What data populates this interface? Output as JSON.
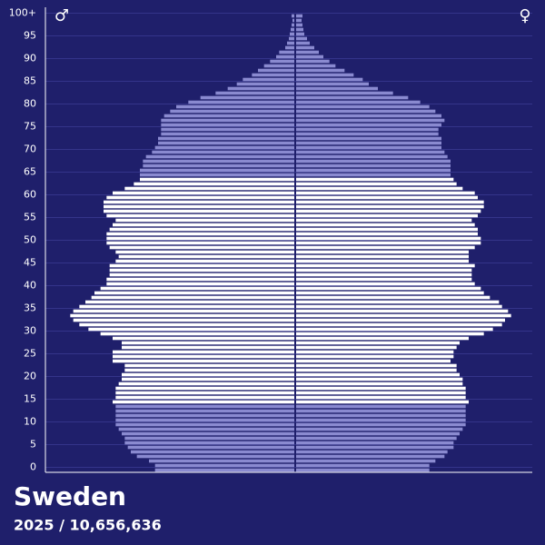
{
  "chart_data": {
    "type": "pyramid",
    "title": "Sweden",
    "subtitle": "2025 / 10,656,636",
    "categories": [
      "0",
      null,
      null,
      null,
      null,
      "5",
      null,
      null,
      null,
      null,
      "10",
      null,
      null,
      null,
      null,
      "15",
      null,
      null,
      null,
      null,
      "20",
      null,
      null,
      null,
      null,
      "25",
      null,
      null,
      null,
      null,
      "30",
      null,
      null,
      null,
      null,
      "35",
      null,
      null,
      null,
      null,
      "40",
      null,
      null,
      null,
      null,
      "45",
      null,
      null,
      null,
      null,
      "50",
      null,
      null,
      null,
      null,
      "55",
      null,
      null,
      null,
      null,
      "60",
      null,
      null,
      null,
      null,
      "65",
      null,
      null,
      null,
      null,
      "70",
      null,
      null,
      null,
      null,
      "75",
      null,
      null,
      null,
      null,
      "80",
      null,
      null,
      null,
      null,
      "85",
      null,
      null,
      null,
      null,
      "90",
      null,
      null,
      null,
      null,
      "95",
      null,
      null,
      null,
      null,
      "100+"
    ],
    "xlim": [
      0,
      82.5
    ],
    "grid": true,
    "bar_colors": [
      "#8a8ad0",
      "#8a8ad0",
      "#8a8ad0",
      "#8a8ad0",
      "#8a8ad0",
      "#8a8ad0",
      "#8a8ad0",
      "#8a8ad0",
      "#8a8ad0",
      "#8a8ad0",
      "#8a8ad0",
      "#8a8ad0",
      "#8a8ad0",
      "#8a8ad0",
      "#8a8ad0",
      "#ffffff",
      "#ffffff",
      "#ffffff",
      "#ffffff",
      "#ffffff",
      "#ffffff",
      "#ffffff",
      "#ffffff",
      "#ffffff",
      "#ffffff",
      "#ffffff",
      "#ffffff",
      "#ffffff",
      "#ffffff",
      "#ffffff",
      "#ffffff",
      "#ffffff",
      "#ffffff",
      "#ffffff",
      "#ffffff",
      "#ffffff",
      "#ffffff",
      "#ffffff",
      "#ffffff",
      "#ffffff",
      "#ffffff",
      "#ffffff",
      "#ffffff",
      "#ffffff",
      "#ffffff",
      "#ffffff",
      "#ffffff",
      "#ffffff",
      "#ffffff",
      "#ffffff",
      "#ffffff",
      "#ffffff",
      "#ffffff",
      "#ffffff",
      "#ffffff",
      "#ffffff",
      "#ffffff",
      "#ffffff",
      "#ffffff",
      "#ffffff",
      "#ffffff",
      "#ffffff",
      "#ffffff",
      "#ffffff",
      "#ffffff",
      "#8a8ad0",
      "#8a8ad0",
      "#8a8ad0",
      "#8a8ad0",
      "#8a8ad0",
      "#8a8ad0",
      "#8a8ad0",
      "#8a8ad0",
      "#8a8ad0",
      "#8a8ad0",
      "#8a8ad0",
      "#8a8ad0",
      "#8a8ad0",
      "#8a8ad0",
      "#8a8ad0",
      "#8a8ad0",
      "#8a8ad0",
      "#8a8ad0",
      "#8a8ad0",
      "#8a8ad0",
      "#8a8ad0",
      "#8a8ad0",
      "#8a8ad0",
      "#8a8ad0",
      "#8a8ad0",
      "#8a8ad0",
      "#8a8ad0",
      "#8a8ad0",
      "#8a8ad0",
      "#8a8ad0",
      "#8a8ad0",
      "#8a8ad0",
      "#8a8ad0",
      "#8a8ad0",
      "#8a8ad0",
      "#8a8ad0"
    ],
    "series": [
      {
        "name": "♂",
        "side": "left",
        "values": [
          46,
          46,
          48,
          52,
          54,
          55,
          56,
          56,
          57,
          58,
          59,
          59,
          59,
          59,
          59,
          60,
          59,
          59,
          59,
          58,
          57,
          57,
          56,
          56,
          60,
          60,
          60,
          57,
          57,
          60,
          64,
          68,
          71,
          73,
          74,
          73,
          71,
          69,
          67,
          66,
          64,
          62,
          62,
          61,
          61,
          61,
          59,
          58,
          59,
          61,
          62,
          62,
          62,
          61,
          60,
          59,
          62,
          63,
          63,
          63,
          62,
          60,
          56,
          53,
          51,
          51,
          51,
          50,
          50,
          49,
          47,
          46,
          45,
          45,
          44,
          44,
          44,
          44,
          43,
          41,
          39,
          35,
          31,
          26,
          22,
          19,
          17,
          14,
          12,
          10,
          8,
          6,
          5,
          3,
          2.4,
          1.8,
          1.5,
          1.2,
          0.9,
          0.6,
          0.9
        ]
      },
      {
        "name": "♀",
        "side": "right",
        "values": [
          44,
          44,
          46,
          49,
          50,
          52,
          52,
          53,
          54,
          55,
          56,
          56,
          56,
          56,
          56,
          57,
          56,
          56,
          56,
          55,
          55,
          54,
          53,
          53,
          51,
          52,
          52,
          53,
          54,
          57,
          62,
          65,
          68,
          69,
          71,
          70,
          68,
          67,
          64,
          62,
          61,
          59,
          58,
          58,
          58,
          59,
          57,
          57,
          57,
          59,
          61,
          61,
          60,
          60,
          59,
          58,
          60,
          61,
          62,
          62,
          60,
          59,
          55,
          53,
          52,
          51,
          51,
          51,
          51,
          50,
          49,
          48,
          48,
          48,
          47,
          47,
          48,
          49,
          48,
          46,
          44,
          41,
          37,
          32,
          27,
          24,
          22,
          19,
          16,
          13,
          11,
          9,
          7.5,
          6,
          4.5,
          3.6,
          2.7,
          2.4,
          2.1,
          1.8,
          2.1
        ]
      }
    ]
  }
}
